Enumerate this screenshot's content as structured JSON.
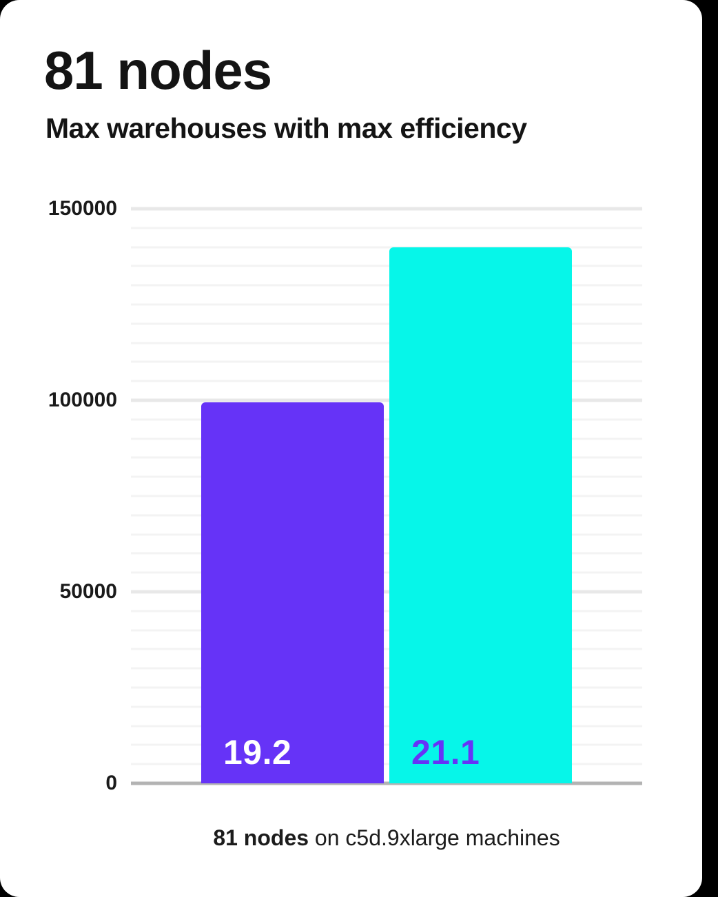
{
  "header": {
    "title": "81 nodes",
    "subtitle": "Max warehouses with max efficiency"
  },
  "chart_data": {
    "type": "bar",
    "title": "81 nodes",
    "subtitle": "Max warehouses with max efficiency",
    "categories": [
      "19.2",
      "21.1"
    ],
    "values": [
      99500,
      140000
    ],
    "bar_colors": [
      "#6633f7",
      "#06f6e9"
    ],
    "bar_label_colors": [
      "#ffffff",
      "#6633f7"
    ],
    "xlabel": "",
    "ylabel": "",
    "ylim": [
      0,
      150000
    ],
    "y_ticks": [
      0,
      50000,
      100000,
      150000
    ],
    "minor_grid_step": 5000,
    "grid": true,
    "legend": false,
    "caption": "81 nodes on c5d.9xlarge machines"
  },
  "caption": {
    "bold": "81 nodes",
    "rest": " on c5d.9xlarge machines"
  },
  "colors": {
    "card_background": "#ffffff",
    "page_background": "#000000",
    "bar_primary": "#6633f7",
    "bar_secondary": "#06f6e9",
    "grid_minor": "#f3f3f3",
    "grid_major": "#e8e8e8",
    "axis": "#b3b3b3",
    "text": "#141414"
  }
}
